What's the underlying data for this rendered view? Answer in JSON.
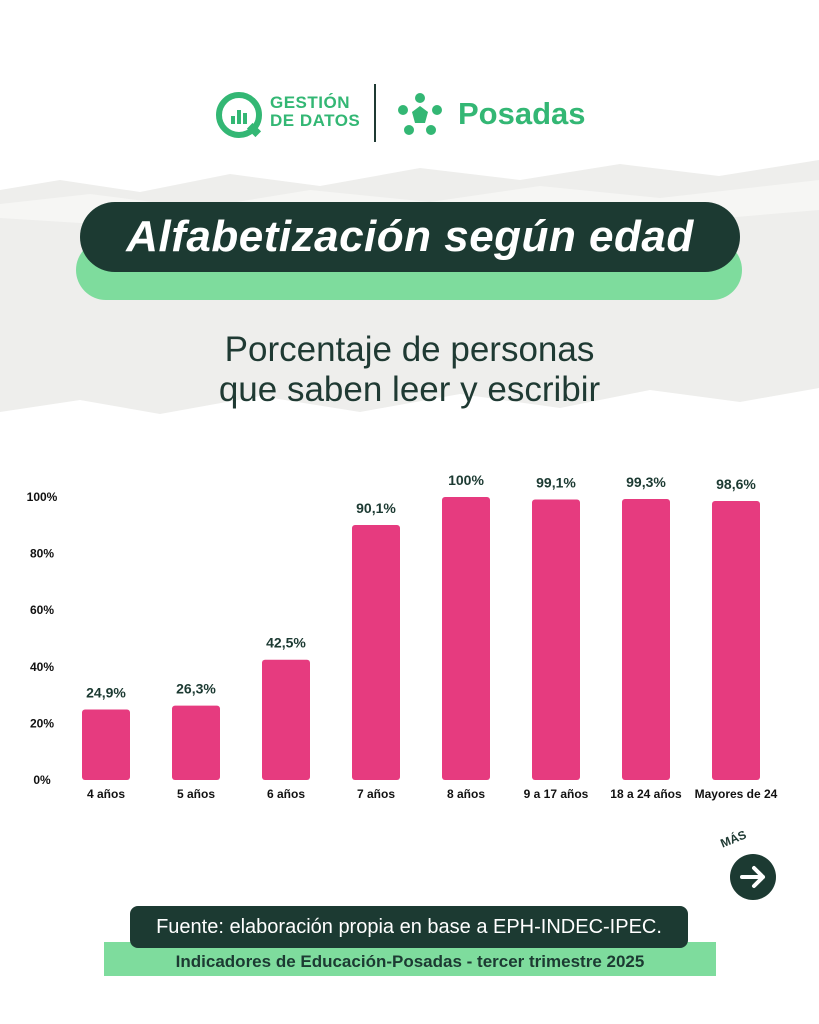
{
  "header": {
    "gestion_line1": "GESTIÓN",
    "gestion_line2": "DE DATOS",
    "brand": "Posadas"
  },
  "title": "Alfabetización según edad",
  "subtitle_line1": "Porcentaje de personas",
  "subtitle_line2": "que saben leer y escribir",
  "more_label": "MÁS",
  "footer": {
    "source": "Fuente: elaboración propia en base a EPH-INDEC-IPEC.",
    "indicators": "Indicadores de Educación-Posadas - tercer trimestre 2025"
  },
  "colors": {
    "bar": "#e63b7f",
    "dark_green": "#1c3a32",
    "accent_green": "#33b774",
    "light_green": "#7edc9d"
  },
  "chart_data": {
    "type": "bar",
    "title": "",
    "xlabel": "",
    "ylabel": "",
    "categories": [
      "4 años",
      "5 años",
      "6 años",
      "7 años",
      "8 años",
      "9 a 17 años",
      "18 a 24 años",
      "Mayores de 24"
    ],
    "values": [
      24.9,
      26.3,
      42.5,
      90.1,
      100,
      99.1,
      99.3,
      98.6
    ],
    "value_labels": [
      "24,9%",
      "26,3%",
      "42,5%",
      "90,1%",
      "100%",
      "99,1%",
      "99,3%",
      "98,6%"
    ],
    "ylim": [
      0,
      100
    ],
    "yticks": [
      0,
      20,
      40,
      60,
      80,
      100
    ],
    "ytick_labels": [
      "0%",
      "20%",
      "40%",
      "60%",
      "80%",
      "100%"
    ],
    "grid": false,
    "legend": "none"
  }
}
